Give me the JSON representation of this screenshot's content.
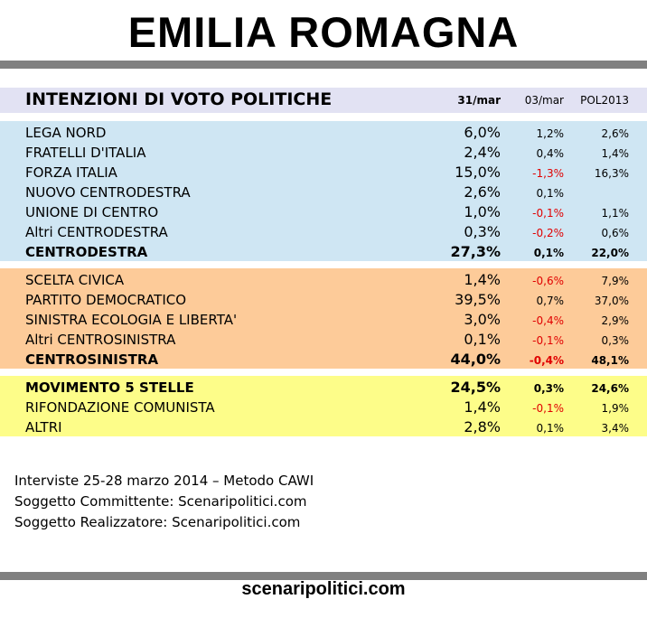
{
  "title": "EMILIA ROMAGNA",
  "chart_data": {
    "type": "table",
    "title": "INTENZIONI DI VOTO POLITICHE",
    "columns": [
      "31/mar",
      "03/mar",
      "POL2013"
    ],
    "groups": [
      {
        "color": "#cfe6f3",
        "rows": [
          {
            "label": "LEGA NORD",
            "v1": "6,0%",
            "v2": "1,2%",
            "v3": "2,6%"
          },
          {
            "label": "FRATELLI D'ITALIA",
            "v1": "2,4%",
            "v2": "0,4%",
            "v3": "1,4%"
          },
          {
            "label": "FORZA ITALIA",
            "v1": "15,0%",
            "v2": "-1,3%",
            "v3": "16,3%"
          },
          {
            "label": "NUOVO CENTRODESTRA",
            "v1": "2,6%",
            "v2": "0,1%",
            "v3": ""
          },
          {
            "label": "UNIONE DI CENTRO",
            "v1": "1,0%",
            "v2": "-0,1%",
            "v3": "1,1%"
          },
          {
            "label": "Altri CENTRODESTRA",
            "v1": "0,3%",
            "v2": "-0,2%",
            "v3": "0,6%"
          },
          {
            "label": "CENTRODESTRA",
            "v1": "27,3%",
            "v2": "0,1%",
            "v3": "22,0%",
            "bold": true
          }
        ]
      },
      {
        "color": "#fdcb99",
        "rows": [
          {
            "label": "SCELTA CIVICA",
            "v1": "1,4%",
            "v2": "-0,6%",
            "v3": "7,9%"
          },
          {
            "label": "PARTITO DEMOCRATICO",
            "v1": "39,5%",
            "v2": "0,7%",
            "v3": "37,0%"
          },
          {
            "label": "SINISTRA ECOLOGIA E LIBERTA'",
            "v1": "3,0%",
            "v2": "-0,4%",
            "v3": "2,9%"
          },
          {
            "label": "Altri CENTROSINISTRA",
            "v1": "0,1%",
            "v2": "-0,1%",
            "v3": "0,3%"
          },
          {
            "label": "CENTROSINISTRA",
            "v1": "44,0%",
            "v2": "-0,4%",
            "v3": "48,1%",
            "bold": true
          }
        ]
      },
      {
        "color": "#fdfd89",
        "rows": [
          {
            "label": "MOVIMENTO 5 STELLE",
            "v1": "24,5%",
            "v2": "0,3%",
            "v3": "24,6%",
            "bold": true
          },
          {
            "label": "RIFONDAZIONE COMUNISTA",
            "v1": "1,4%",
            "v2": "-0,1%",
            "v3": "1,9%"
          },
          {
            "label": "ALTRI",
            "v1": "2,8%",
            "v2": "0,1%",
            "v3": "3,4%"
          }
        ]
      }
    ]
  },
  "footer": {
    "line1": "Interviste 25-28 marzo 2014 – Metodo CAWI",
    "line2": "Soggetto Committente: Scenaripolitici.com",
    "line3": "Soggetto Realizzatore: Scenaripolitici.com"
  },
  "site": "scenaripolitici.com",
  "colors": {
    "negative": "#e00000",
    "rule": "#808080",
    "header_bg": "#e2e2f3"
  }
}
